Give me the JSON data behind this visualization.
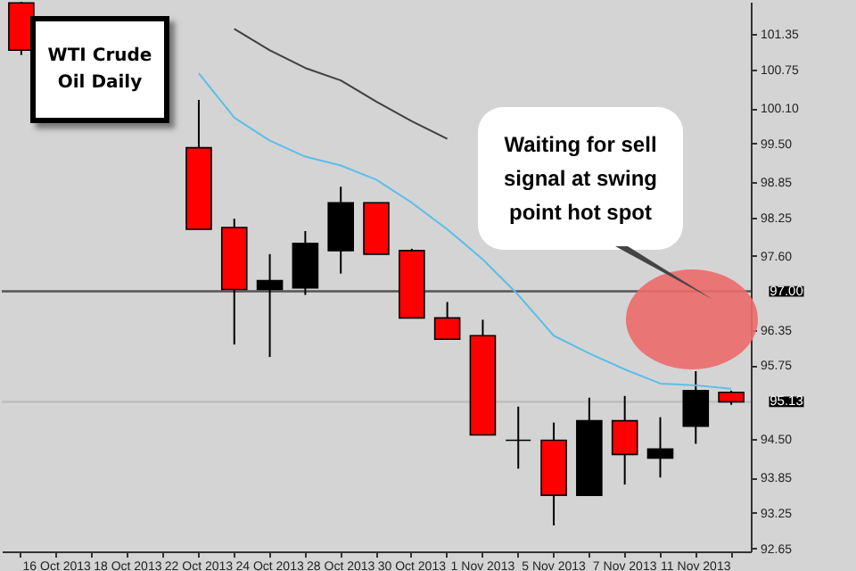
{
  "chart_data": {
    "type": "candlestick",
    "title": "WTI Crude Oil Daily",
    "categories": [
      null,
      "16 Oct 2013",
      null,
      "18 Oct 2013",
      null,
      "22 Oct 2013",
      null,
      "24 Oct 2013",
      null,
      "28 Oct 2013",
      null,
      "30 Oct 2013",
      null,
      "1 Nov 2013",
      null,
      "5 Nov 2013",
      null,
      "7 Nov 2013",
      null,
      "11 Nov 2013",
      null
    ],
    "ohlc": [
      [
        101.88,
        101.9,
        101.0,
        101.08
      ],
      null,
      null,
      null,
      null,
      [
        99.43,
        100.24,
        98.05,
        98.05
      ],
      [
        98.08,
        98.23,
        96.1,
        97.03
      ],
      [
        97.03,
        97.63,
        95.89,
        97.18
      ],
      [
        97.06,
        98.02,
        96.94,
        97.81
      ],
      [
        97.69,
        98.77,
        97.3,
        98.5
      ],
      [
        98.5,
        98.5,
        97.63,
        97.63
      ],
      [
        97.69,
        97.72,
        96.55,
        96.55
      ],
      [
        96.55,
        96.82,
        96.19,
        96.19
      ],
      [
        96.25,
        96.52,
        94.57,
        94.57
      ],
      [
        94.48,
        95.05,
        94.0,
        94.48
      ],
      [
        94.48,
        94.78,
        93.04,
        93.55
      ],
      [
        93.55,
        95.2,
        93.55,
        94.81
      ],
      [
        94.81,
        95.23,
        93.73,
        94.24
      ],
      [
        94.18,
        94.87,
        93.85,
        94.33
      ],
      [
        94.72,
        95.65,
        94.42,
        95.32
      ],
      [
        95.29,
        95.32,
        95.08,
        95.13
      ]
    ],
    "colors": [
      "#ff0000",
      null,
      null,
      null,
      null,
      "#ff0000",
      "#ff0000",
      "#000000",
      "#000000",
      "#000000",
      "#ff0000",
      "#ff0000",
      "#ff0000",
      "#ff0000",
      "#000000",
      "#ff0000",
      "#000000",
      "#ff0000",
      "#000000",
      "#000000",
      "#ff0000"
    ],
    "series": [
      {
        "type": "line",
        "color": "#5bbfe8",
        "values": [
          null,
          null,
          null,
          null,
          null,
          100.69,
          99.94,
          99.55,
          99.28,
          99.13,
          98.89,
          98.5,
          98.05,
          97.54,
          96.94,
          96.25,
          95.95,
          95.68,
          95.44,
          95.41,
          95.35
        ]
      },
      {
        "type": "line",
        "color": "#404040",
        "values": [
          null,
          null,
          null,
          null,
          null,
          null,
          101.44,
          101.08,
          100.78,
          100.57,
          100.21,
          99.88,
          99.58,
          null,
          null,
          null,
          null,
          null,
          null,
          null,
          null
        ]
      }
    ],
    "ylim": [
      92.6,
      101.9
    ],
    "yticks": [
      92.65,
      93.25,
      93.85,
      {
        "value": 94.5,
        "label": "94.50"
      },
      95.75,
      96.35,
      {
        "value": 97.6,
        "label": "97.60"
      },
      98.25,
      98.85,
      {
        "value": 99.5,
        "label": "99.50"
      },
      {
        "value": 100.1,
        "label": "100.10"
      },
      100.75,
      101.35
    ],
    "ref_lines": [
      {
        "axis": "y",
        "value": 97.0,
        "label": "97.00",
        "color": "#555555"
      },
      {
        "axis": "y",
        "value": 95.13,
        "label": "95.13",
        "color": "#bdbdbd"
      }
    ],
    "annotations": [
      "Waiting for sell signal at swing point hot spot"
    ],
    "grid": false
  }
}
